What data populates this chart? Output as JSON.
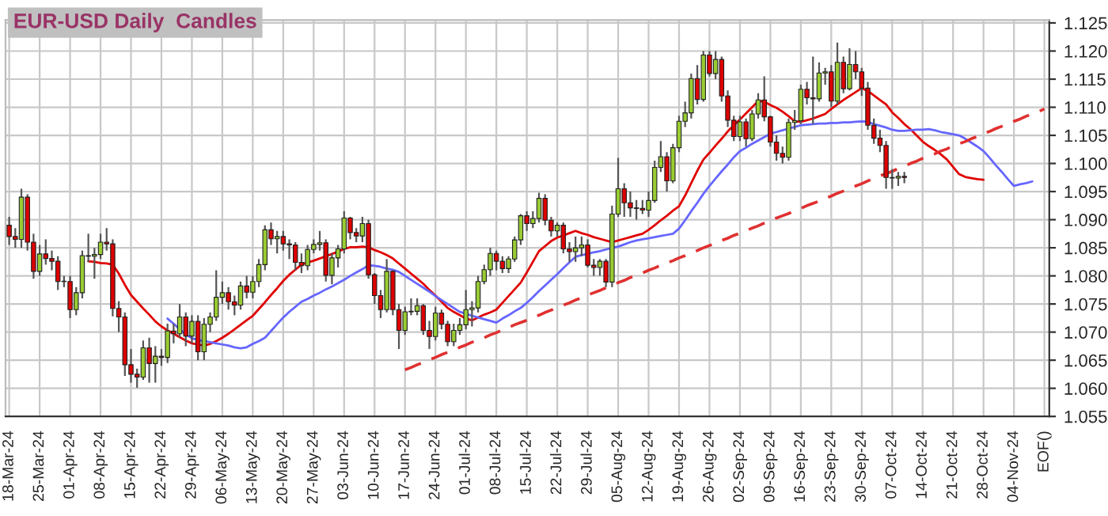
{
  "chart_data": {
    "type": "candlestick",
    "title": "EUR-USD Daily  Candles",
    "categories": [
      "18-Mar-24",
      null,
      null,
      null,
      null,
      "25-Mar-24",
      null,
      null,
      null,
      null,
      "01-Apr-24",
      null,
      null,
      null,
      null,
      "08-Apr-24",
      null,
      null,
      null,
      null,
      "15-Apr-24",
      null,
      null,
      null,
      null,
      "22-Apr-24",
      null,
      null,
      null,
      null,
      "29-Apr-24",
      null,
      null,
      null,
      null,
      "06-May-24",
      null,
      null,
      null,
      null,
      "13-May-24",
      null,
      null,
      null,
      null,
      "20-May-24",
      null,
      null,
      null,
      null,
      "27-May-24",
      null,
      null,
      null,
      null,
      "03-Jun-24",
      null,
      null,
      null,
      null,
      "10-Jun-24",
      null,
      null,
      null,
      null,
      "17-Jun-24",
      null,
      null,
      null,
      null,
      "24-Jun-24",
      null,
      null,
      null,
      null,
      "01-Jul-24",
      null,
      null,
      null,
      null,
      "08-Jul-24",
      null,
      null,
      null,
      null,
      "15-Jul-24",
      null,
      null,
      null,
      null,
      "22-Jul-24",
      null,
      null,
      null,
      null,
      "29-Jul-24",
      null,
      null,
      null,
      null,
      "05-Aug-24",
      null,
      null,
      null,
      null,
      "12-Aug-24",
      null,
      null,
      null,
      null,
      "19-Aug-24",
      null,
      null,
      null,
      null,
      "26-Aug-24",
      null,
      null,
      null,
      null,
      "02-Sep-24",
      null,
      null,
      null,
      null,
      "09-Sep-24",
      null,
      null,
      null,
      null,
      "16-Sep-24",
      null,
      null,
      null,
      null,
      "23-Sep-24",
      null,
      null,
      null,
      null,
      "30-Sep-24",
      null,
      null,
      null,
      null,
      "07-Oct-24",
      null,
      null,
      null,
      null,
      "14-Oct-24",
      null,
      null,
      null,
      null,
      "21-Oct-24",
      null,
      null,
      null,
      null,
      "28-Oct-24",
      null,
      null,
      null,
      null,
      "04-Nov-24",
      null,
      null,
      null,
      null,
      "EOF()"
    ],
    "ohlc": [
      [
        1.089,
        1.0905,
        1.0855,
        1.087
      ],
      [
        1.087,
        1.0885,
        1.085,
        1.0865
      ],
      [
        1.0865,
        1.0955,
        1.085,
        1.094
      ],
      [
        1.094,
        1.0945,
        1.0845,
        1.086
      ],
      [
        1.086,
        1.0875,
        1.0795,
        1.0808
      ],
      [
        1.0808,
        1.0855,
        1.08,
        1.0839
      ],
      [
        1.0839,
        1.0865,
        1.082,
        1.0831
      ],
      [
        1.0831,
        1.0845,
        1.081,
        1.0826
      ],
      [
        1.0826,
        1.0835,
        1.0775,
        1.079
      ],
      [
        1.079,
        1.08,
        1.078,
        1.079
      ],
      [
        1.079,
        1.08,
        1.0725,
        1.074
      ],
      [
        1.074,
        1.078,
        1.073,
        1.077
      ],
      [
        1.077,
        1.0845,
        1.076,
        1.0836
      ],
      [
        1.0836,
        1.0875,
        1.0825,
        1.0835
      ],
      [
        1.0835,
        1.085,
        1.0795,
        1.0838
      ],
      [
        1.0838,
        1.0875,
        1.083,
        1.086
      ],
      [
        1.086,
        1.0885,
        1.0845,
        1.0857
      ],
      [
        1.0857,
        1.0865,
        1.0728,
        1.0742
      ],
      [
        1.0742,
        1.0755,
        1.07,
        1.0727
      ],
      [
        1.0727,
        1.0735,
        1.0622,
        1.0642
      ],
      [
        1.0642,
        1.067,
        1.061,
        1.0625
      ],
      [
        1.0625,
        1.0635,
        1.0601,
        1.062
      ],
      [
        1.062,
        1.0685,
        1.0615,
        1.0672
      ],
      [
        1.0672,
        1.069,
        1.061,
        1.0644
      ],
      [
        1.0644,
        1.0675,
        1.061,
        1.0657
      ],
      [
        1.0657,
        1.067,
        1.064,
        1.0655
      ],
      [
        1.0655,
        1.0715,
        1.0645,
        1.0702
      ],
      [
        1.0702,
        1.0715,
        1.068,
        1.0697
      ],
      [
        1.0697,
        1.075,
        1.069,
        1.0727
      ],
      [
        1.0727,
        1.0735,
        1.0675,
        1.0693
      ],
      [
        1.0693,
        1.073,
        1.068,
        1.0719
      ],
      [
        1.0719,
        1.073,
        1.065,
        1.0665
      ],
      [
        1.0665,
        1.0725,
        1.065,
        1.0714
      ],
      [
        1.0714,
        1.0735,
        1.07,
        1.0727
      ],
      [
        1.0727,
        1.081,
        1.072,
        1.0762
      ],
      [
        1.0762,
        1.079,
        1.075,
        1.077
      ],
      [
        1.077,
        1.078,
        1.074,
        1.0754
      ],
      [
        1.0754,
        1.0765,
        1.073,
        1.0748
      ],
      [
        1.0748,
        1.079,
        1.074,
        1.0782
      ],
      [
        1.0782,
        1.08,
        1.076,
        1.0771
      ],
      [
        1.0771,
        1.08,
        1.076,
        1.079
      ],
      [
        1.079,
        1.083,
        1.078,
        1.082
      ],
      [
        1.082,
        1.089,
        1.081,
        1.0882
      ],
      [
        1.0882,
        1.0895,
        1.0855,
        1.0866
      ],
      [
        1.0866,
        1.088,
        1.084,
        1.087
      ],
      [
        1.087,
        1.088,
        1.0845,
        1.0857
      ],
      [
        1.0857,
        1.0865,
        1.083,
        1.0855
      ],
      [
        1.0855,
        1.086,
        1.081,
        1.0824
      ],
      [
        1.0824,
        1.084,
        1.0805,
        1.0818
      ],
      [
        1.0818,
        1.0855,
        1.081,
        1.0847
      ],
      [
        1.0847,
        1.0865,
        1.084,
        1.0856
      ],
      [
        1.0856,
        1.088,
        1.0845,
        1.0859
      ],
      [
        1.0859,
        1.0865,
        1.079,
        1.0801
      ],
      [
        1.0801,
        1.084,
        1.0785,
        1.0832
      ],
      [
        1.0832,
        1.0855,
        1.0815,
        1.0848
      ],
      [
        1.0848,
        1.0915,
        1.084,
        1.0903
      ],
      [
        1.0903,
        1.0905,
        1.0865,
        1.0877
      ],
      [
        1.0877,
        1.0885,
        1.086,
        1.0871
      ],
      [
        1.0871,
        1.0905,
        1.086,
        1.0893
      ],
      [
        1.0893,
        1.09,
        1.0795,
        1.0802
      ],
      [
        1.0802,
        1.0805,
        1.075,
        1.0765
      ],
      [
        1.0765,
        1.0775,
        1.0725,
        1.074
      ],
      [
        1.074,
        1.083,
        1.0735,
        1.0808
      ],
      [
        1.0808,
        1.081,
        1.073,
        1.074
      ],
      [
        1.074,
        1.075,
        1.067,
        1.0703
      ],
      [
        1.0703,
        1.0745,
        1.0695,
        1.0736
      ],
      [
        1.0736,
        1.076,
        1.073,
        1.0737
      ],
      [
        1.0737,
        1.076,
        1.073,
        1.0747
      ],
      [
        1.0747,
        1.075,
        1.0695,
        1.0703
      ],
      [
        1.0703,
        1.072,
        1.067,
        1.0692
      ],
      [
        1.0692,
        1.0745,
        1.0685,
        1.0734
      ],
      [
        1.0734,
        1.074,
        1.0705,
        1.0714
      ],
      [
        1.0714,
        1.072,
        1.0675,
        1.0683
      ],
      [
        1.0683,
        1.0715,
        1.0675,
        1.0703
      ],
      [
        1.0703,
        1.0725,
        1.0695,
        1.0713
      ],
      [
        1.0713,
        1.0775,
        1.0705,
        1.074
      ],
      [
        1.074,
        1.0755,
        1.071,
        1.0743
      ],
      [
        1.0743,
        1.08,
        1.0735,
        1.079
      ],
      [
        1.079,
        1.082,
        1.0785,
        1.0811
      ],
      [
        1.0811,
        1.085,
        1.08,
        1.084
      ],
      [
        1.084,
        1.0845,
        1.081,
        1.0826
      ],
      [
        1.0826,
        1.0835,
        1.0805,
        1.0813
      ],
      [
        1.0813,
        1.0835,
        1.0805,
        1.083
      ],
      [
        1.083,
        1.087,
        1.0825,
        1.0864
      ],
      [
        1.0864,
        1.091,
        1.0855,
        1.0907
      ],
      [
        1.0907,
        1.0915,
        1.088,
        1.0893
      ],
      [
        1.0893,
        1.0915,
        1.0885,
        1.0902
      ],
      [
        1.0902,
        1.0948,
        1.0895,
        1.0938
      ],
      [
        1.0938,
        1.0945,
        1.089,
        1.0899
      ],
      [
        1.0899,
        1.0905,
        1.087,
        1.088
      ],
      [
        1.088,
        1.0895,
        1.087,
        1.089
      ],
      [
        1.089,
        1.0895,
        1.084,
        1.0848
      ],
      [
        1.0848,
        1.086,
        1.0825,
        1.0843
      ],
      [
        1.0843,
        1.087,
        1.0825,
        1.085
      ],
      [
        1.085,
        1.087,
        1.0835,
        1.0855
      ],
      [
        1.0855,
        1.0865,
        1.0815,
        1.0819
      ],
      [
        1.0819,
        1.083,
        1.08,
        1.0815
      ],
      [
        1.0815,
        1.083,
        1.08,
        1.0826
      ],
      [
        1.0826,
        1.083,
        1.078,
        1.0789
      ],
      [
        1.0789,
        1.0925,
        1.078,
        1.091
      ],
      [
        1.091,
        1.101,
        1.0905,
        1.0955
      ],
      [
        1.0955,
        1.0965,
        1.0905,
        1.093
      ],
      [
        1.093,
        1.095,
        1.0905,
        1.0921
      ],
      [
        1.0921,
        1.0935,
        1.09,
        1.092
      ],
      [
        1.092,
        1.0935,
        1.091,
        1.0917
      ],
      [
        1.0917,
        1.095,
        1.0905,
        1.0934
      ],
      [
        1.0934,
        1.1005,
        1.093,
        1.0993
      ],
      [
        1.0993,
        1.104,
        1.0985,
        1.1012
      ],
      [
        1.1012,
        1.102,
        1.095,
        1.0969
      ],
      [
        1.0969,
        1.1035,
        1.0965,
        1.1028
      ],
      [
        1.1028,
        1.1085,
        1.102,
        1.1075
      ],
      [
        1.1075,
        1.111,
        1.1065,
        1.109
      ],
      [
        1.109,
        1.116,
        1.108,
        1.1151
      ],
      [
        1.1151,
        1.1175,
        1.1105,
        1.1114
      ],
      [
        1.1114,
        1.12,
        1.111,
        1.1193
      ],
      [
        1.1193,
        1.12,
        1.1155,
        1.116
      ],
      [
        1.116,
        1.12,
        1.115,
        1.1185
      ],
      [
        1.1185,
        1.119,
        1.111,
        1.112
      ],
      [
        1.112,
        1.113,
        1.1065,
        1.1077
      ],
      [
        1.1077,
        1.1085,
        1.104,
        1.1048
      ],
      [
        1.1048,
        1.1085,
        1.104,
        1.1074
      ],
      [
        1.1074,
        1.108,
        1.103,
        1.1044
      ],
      [
        1.1044,
        1.1095,
        1.104,
        1.1088
      ],
      [
        1.1088,
        1.1125,
        1.108,
        1.1113
      ],
      [
        1.1113,
        1.1155,
        1.1075,
        1.1083
      ],
      [
        1.1083,
        1.1085,
        1.103,
        1.1038
      ],
      [
        1.1038,
        1.105,
        1.1005,
        1.1018
      ],
      [
        1.1018,
        1.103,
        1.1,
        1.1011
      ],
      [
        1.1011,
        1.108,
        1.1005,
        1.1073
      ],
      [
        1.1073,
        1.1095,
        1.106,
        1.1076
      ],
      [
        1.1076,
        1.114,
        1.107,
        1.1132
      ],
      [
        1.1132,
        1.1145,
        1.1105,
        1.1117
      ],
      [
        1.1117,
        1.119,
        1.107,
        1.1115
      ],
      [
        1.1115,
        1.118,
        1.111,
        1.1161
      ],
      [
        1.1161,
        1.117,
        1.114,
        1.1163
      ],
      [
        1.1163,
        1.1175,
        1.11,
        1.1111
      ],
      [
        1.1111,
        1.1215,
        1.1105,
        1.118
      ],
      [
        1.118,
        1.119,
        1.1125,
        1.1133
      ],
      [
        1.1133,
        1.1205,
        1.113,
        1.1176
      ],
      [
        1.1176,
        1.12,
        1.115,
        1.1163
      ],
      [
        1.1163,
        1.117,
        1.112,
        1.1134
      ],
      [
        1.1134,
        1.1145,
        1.106,
        1.1068
      ],
      [
        1.1068,
        1.108,
        1.1035,
        1.1045
      ],
      [
        1.1045,
        1.106,
        1.102,
        1.1032
      ],
      [
        1.1032,
        1.104,
        1.0955,
        1.0975
      ],
      [
        1.0975,
        1.099,
        1.0955,
        1.0974
      ],
      [
        1.0974,
        1.0985,
        1.096,
        1.0977
      ],
      [
        1.0977,
        1.0985,
        1.0965,
        1.0975
      ],
      null,
      null,
      null,
      null,
      null,
      null,
      null,
      null,
      null,
      null,
      null,
      null,
      null,
      null,
      null,
      null,
      null,
      null,
      null,
      null,
      null,
      null,
      null
    ],
    "colors": [
      "#dd0000",
      "#dd0000",
      "#99cc33",
      "#dd0000",
      "#dd0000",
      "#99cc33",
      "#dd0000",
      "#dd0000",
      "#dd0000",
      "#99cc33",
      "#dd0000",
      "#99cc33",
      "#99cc33",
      "#dd0000",
      "#99cc33",
      "#99cc33",
      "#dd0000",
      "#dd0000",
      "#dd0000",
      "#dd0000",
      "#dd0000",
      "#dd0000",
      "#99cc33",
      "#dd0000",
      "#99cc33",
      "#dd0000",
      "#99cc33",
      "#dd0000",
      "#99cc33",
      "#dd0000",
      "#99cc33",
      "#dd0000",
      "#99cc33",
      "#99cc33",
      "#99cc33",
      "#99cc33",
      "#dd0000",
      "#dd0000",
      "#99cc33",
      "#dd0000",
      "#99cc33",
      "#99cc33",
      "#99cc33",
      "#dd0000",
      "#99cc33",
      "#dd0000",
      "#dd0000",
      "#dd0000",
      "#dd0000",
      "#99cc33",
      "#99cc33",
      "#99cc33",
      "#dd0000",
      "#99cc33",
      "#99cc33",
      "#99cc33",
      "#dd0000",
      "#dd0000",
      "#99cc33",
      "#dd0000",
      "#dd0000",
      "#dd0000",
      "#99cc33",
      "#dd0000",
      "#dd0000",
      "#99cc33",
      "#99cc33",
      "#99cc33",
      "#dd0000",
      "#dd0000",
      "#99cc33",
      "#dd0000",
      "#dd0000",
      "#99cc33",
      "#99cc33",
      "#99cc33",
      "#99cc33",
      "#99cc33",
      "#99cc33",
      "#99cc33",
      "#dd0000",
      "#dd0000",
      "#99cc33",
      "#99cc33",
      "#99cc33",
      "#dd0000",
      "#99cc33",
      "#99cc33",
      "#dd0000",
      "#dd0000",
      "#99cc33",
      "#dd0000",
      "#dd0000",
      "#99cc33",
      "#99cc33",
      "#dd0000",
      "#dd0000",
      "#99cc33",
      "#dd0000",
      "#99cc33",
      "#99cc33",
      "#dd0000",
      "#dd0000",
      "#dd0000",
      "#dd0000",
      "#99cc33",
      "#99cc33",
      "#99cc33",
      "#dd0000",
      "#99cc33",
      "#99cc33",
      "#99cc33",
      "#99cc33",
      "#dd0000",
      "#99cc33",
      "#dd0000",
      "#99cc33",
      "#dd0000",
      "#dd0000",
      "#dd0000",
      "#99cc33",
      "#dd0000",
      "#99cc33",
      "#99cc33",
      "#dd0000",
      "#dd0000",
      "#dd0000",
      "#dd0000",
      "#99cc33",
      "#99cc33",
      "#99cc33",
      "#dd0000",
      "#dd0000",
      "#99cc33",
      "#99cc33",
      "#dd0000",
      "#99cc33",
      "#dd0000",
      "#99cc33",
      "#dd0000",
      "#dd0000",
      "#dd0000",
      "#dd0000",
      "#dd0000",
      "#dd0000",
      "#dd0000",
      "#99cc33",
      "#dd0000",
      null,
      null,
      null,
      null,
      null,
      null,
      null,
      null,
      null,
      null,
      null,
      null,
      null,
      null,
      null,
      null,
      null,
      null,
      null,
      null,
      null,
      null,
      null
    ],
    "series": [
      {
        "type": "line",
        "color": "#e00000",
        "line_style": "solid",
        "values": [
          null,
          null,
          null,
          null,
          null,
          null,
          null,
          null,
          null,
          null,
          null,
          null,
          null,
          1.0826,
          1.0825,
          1.0823,
          1.0822,
          1.082,
          1.0804,
          1.0784,
          1.0766,
          1.0754,
          1.0742,
          1.0731,
          1.0719,
          1.071,
          1.0703,
          1.0697,
          1.0691,
          1.0685,
          1.068,
          1.0678,
          1.0676,
          1.0679,
          1.0684,
          1.069,
          1.0697,
          1.0705,
          1.0713,
          1.0721,
          1.0729,
          1.0741,
          1.0753,
          1.0766,
          1.0778,
          1.0791,
          1.0802,
          1.0811,
          1.082,
          1.0824,
          1.0827,
          1.0831,
          1.0835,
          1.0839,
          1.0843,
          1.0848,
          1.0851,
          1.0851,
          1.0852,
          1.0851,
          1.0846,
          1.0842,
          1.0837,
          1.0831,
          1.0822,
          1.0813,
          1.0804,
          1.0795,
          1.0786,
          1.0775,
          1.0765,
          1.0754,
          1.0743,
          1.0736,
          1.073,
          1.0724,
          1.0721,
          1.0726,
          1.0731,
          1.0735,
          1.074,
          1.0752,
          1.0764,
          1.0776,
          1.0788,
          1.0806,
          1.0825,
          1.0844,
          1.0853,
          1.0862,
          1.0868,
          1.0872,
          1.0876,
          1.088,
          1.0876,
          1.0873,
          1.0869,
          1.0866,
          1.0863,
          1.086,
          1.0863,
          1.0866,
          1.0869,
          1.0872,
          1.0875,
          1.0882,
          1.089,
          1.0899,
          1.0907,
          1.0916,
          1.0924,
          1.0943,
          1.0965,
          1.0987,
          1.1007,
          1.1019,
          1.1032,
          1.1044,
          1.1057,
          1.1068,
          1.1078,
          1.1089,
          1.11,
          1.1111,
          1.111,
          1.1104,
          1.1099,
          1.1092,
          1.1084,
          1.1075,
          1.1074,
          1.1077,
          1.108,
          1.1084,
          1.1088,
          1.1097,
          1.1105,
          1.1113,
          1.112,
          1.1127,
          1.1134,
          1.1129,
          1.1121,
          1.1113,
          1.1105,
          1.1091,
          1.1081,
          1.107,
          1.1061,
          1.105,
          1.1039,
          1.1031,
          1.1024,
          1.1016,
          1.1007,
          1.0994,
          1.0981,
          1.0976,
          1.0974,
          1.0972,
          1.0971,
          null,
          null,
          null,
          null,
          null,
          null,
          null,
          null,
          null,
          null
        ]
      },
      {
        "type": "line",
        "color": "#6666ff",
        "line_style": "solid",
        "values": [
          null,
          null,
          null,
          null,
          null,
          null,
          null,
          null,
          null,
          null,
          null,
          null,
          null,
          null,
          null,
          null,
          null,
          null,
          null,
          null,
          null,
          null,
          null,
          null,
          null,
          null,
          1.0724,
          1.0715,
          1.0705,
          1.0696,
          1.0689,
          1.0686,
          1.0684,
          1.0682,
          1.068,
          1.0678,
          1.0676,
          1.0673,
          1.0671,
          1.0673,
          1.0679,
          1.0684,
          1.069,
          1.0702,
          1.0714,
          1.0726,
          1.0736,
          1.0745,
          1.0754,
          1.0759,
          1.0765,
          1.077,
          1.0776,
          1.0781,
          1.0787,
          1.0793,
          1.08,
          1.0806,
          1.0812,
          1.0819,
          1.0818,
          1.0816,
          1.0813,
          1.0811,
          1.0807,
          1.08,
          1.0793,
          1.0786,
          1.0779,
          1.0772,
          1.0764,
          1.0757,
          1.075,
          1.0743,
          1.0736,
          1.0733,
          1.0729,
          1.0726,
          1.0723,
          1.072,
          1.0717,
          1.0724,
          1.073,
          1.0737,
          1.0743,
          1.0752,
          1.0762,
          1.0773,
          1.0783,
          1.0793,
          1.0803,
          1.0814,
          1.0824,
          1.0834,
          1.0837,
          1.0839,
          1.0842,
          1.0844,
          1.0847,
          1.085,
          1.0852,
          1.0856,
          1.086,
          1.0863,
          1.0865,
          1.0867,
          1.0869,
          1.0871,
          1.0873,
          1.0875,
          1.0884,
          1.0899,
          1.0915,
          1.093,
          1.0946,
          1.096,
          1.0973,
          1.0986,
          1.0998,
          1.1011,
          1.1022,
          1.1028,
          1.1035,
          1.1041,
          1.1047,
          1.1053,
          1.1056,
          1.1059,
          1.1062,
          1.1065,
          1.1068,
          1.1069,
          1.107,
          1.1071,
          1.1071,
          1.1072,
          1.1072,
          1.1073,
          1.1073,
          1.1074,
          1.1075,
          1.1074,
          1.107,
          1.1067,
          1.1064,
          1.106,
          1.1058,
          1.1058,
          1.1059,
          1.106,
          1.106,
          1.1061,
          1.1059,
          1.1056,
          1.1054,
          1.1052,
          1.105,
          1.1044,
          1.1037,
          1.103,
          1.1022,
          1.101,
          1.0997,
          1.0985,
          1.0972,
          1.096,
          1.0963,
          1.0965,
          1.0968,
          null,
          null
        ]
      },
      {
        "type": "line",
        "color": "#e03030",
        "line_style": "dashed",
        "values": [
          null,
          null,
          null,
          null,
          null,
          null,
          null,
          null,
          null,
          null,
          null,
          null,
          null,
          null,
          null,
          null,
          null,
          null,
          null,
          null,
          null,
          null,
          null,
          null,
          null,
          null,
          null,
          null,
          null,
          null,
          null,
          null,
          null,
          null,
          null,
          null,
          null,
          null,
          null,
          null,
          null,
          null,
          null,
          null,
          null,
          null,
          null,
          null,
          null,
          null,
          null,
          null,
          null,
          null,
          null,
          null,
          null,
          null,
          null,
          null,
          null,
          null,
          null,
          null,
          null,
          1.0633,
          1.0637,
          1.0642,
          1.0646,
          1.0651,
          1.0655,
          1.066,
          1.0664,
          1.0668,
          1.0673,
          1.0677,
          1.0682,
          1.0686,
          1.069,
          1.0695,
          1.0699,
          1.0704,
          1.0708,
          1.0713,
          1.0717,
          1.0721,
          1.0726,
          1.073,
          1.0735,
          1.0739,
          1.0744,
          1.0748,
          1.0752,
          1.0757,
          1.0761,
          1.0766,
          1.077,
          1.0774,
          1.0779,
          1.0783,
          1.0788,
          1.0792,
          1.0797,
          1.0801,
          1.0805,
          1.081,
          1.0814,
          1.0819,
          1.0823,
          1.0827,
          1.0832,
          1.0836,
          1.0841,
          1.0845,
          1.085,
          1.0854,
          1.0858,
          1.0863,
          1.0867,
          1.0872,
          1.0876,
          1.088,
          1.0885,
          1.0889,
          1.0894,
          1.0898,
          1.0903,
          1.0907,
          1.0911,
          1.0916,
          1.092,
          1.0925,
          1.0929,
          1.0933,
          1.0938,
          1.0942,
          1.0947,
          1.0951,
          1.0956,
          1.096,
          1.0964,
          1.0969,
          1.0973,
          1.0978,
          1.0982,
          1.0986,
          1.0991,
          1.0995,
          1.1,
          1.1004,
          1.1009,
          1.1013,
          1.1017,
          1.1022,
          1.1026,
          1.1031,
          1.1035,
          1.1039,
          1.1044,
          1.1048,
          1.1053,
          1.1057,
          1.1062,
          1.1066,
          1.107,
          1.1075,
          1.1079,
          1.1084,
          1.1088,
          1.1092,
          1.1097
        ]
      }
    ],
    "ylim": [
      1.055,
      1.1255
    ],
    "yticks": [
      1.055,
      {
        "value": 1.06,
        "label": "1.060"
      },
      1.065,
      {
        "value": 1.07,
        "label": "1.070"
      },
      1.075,
      {
        "value": 1.08,
        "label": "1.080"
      },
      1.085,
      {
        "value": 1.09,
        "label": "1.090"
      },
      1.095,
      {
        "value": 1.1,
        "label": "1.100"
      },
      1.105,
      {
        "value": 1.11,
        "label": "1.110"
      },
      1.115,
      {
        "value": 1.12,
        "label": "1.120"
      },
      1.125
    ],
    "grid": true
  }
}
